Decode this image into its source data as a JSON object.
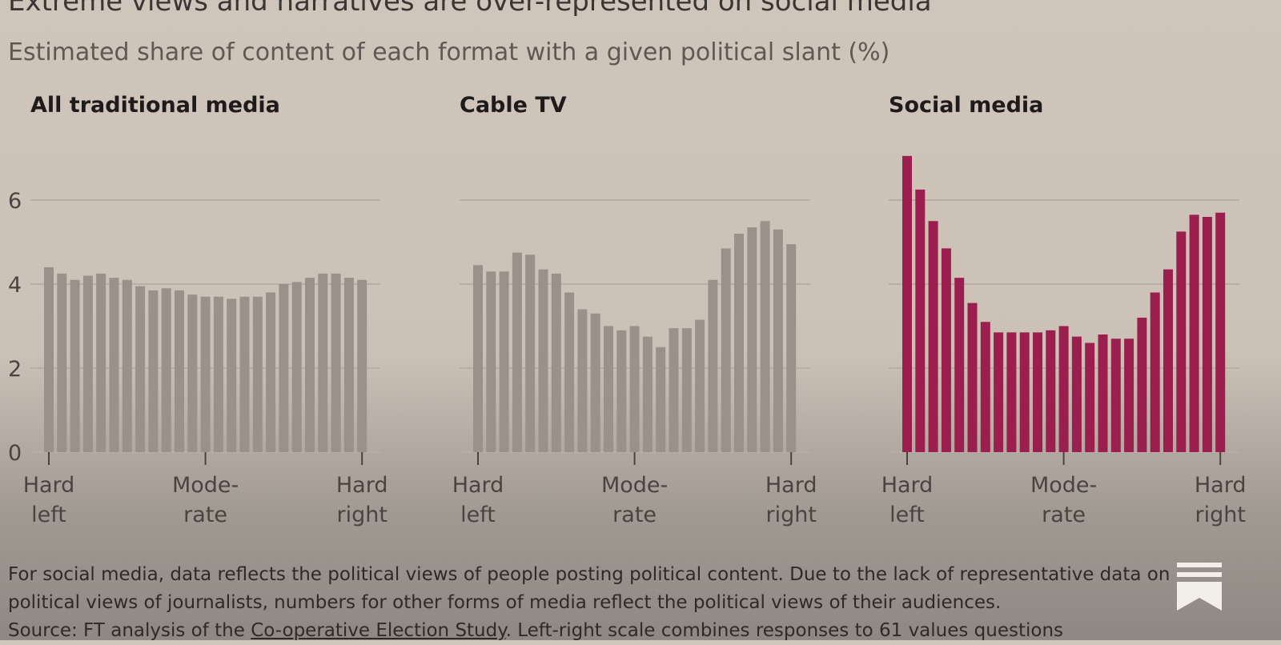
{
  "header": {
    "title": "Extreme views and narratives are over-represented on social media",
    "subtitle": "Estimated share of content of each format with a given political slant (%)"
  },
  "colors": {
    "grey_bar": "#9b918a",
    "social_bar": "#9b1f4c",
    "grid": "#b8aea5"
  },
  "chart_data": [
    {
      "type": "bar",
      "title": "All traditional media",
      "xticks": [
        {
          "line1": "Hard",
          "line2": "left"
        },
        {
          "line1": "Mode-",
          "line2": "rate"
        },
        {
          "line1": "Hard",
          "line2": "right"
        }
      ],
      "yticks": [
        "0",
        "2",
        "4",
        "6"
      ],
      "ylim": [
        0,
        7
      ],
      "values": [
        4.4,
        4.25,
        4.1,
        4.2,
        4.25,
        4.15,
        4.1,
        3.95,
        3.85,
        3.9,
        3.85,
        3.75,
        3.7,
        3.7,
        3.65,
        3.7,
        3.7,
        3.8,
        4.0,
        4.05,
        4.15,
        4.25,
        4.25,
        4.15,
        4.1
      ],
      "color": "#9b918a"
    },
    {
      "type": "bar",
      "title": "Cable TV",
      "xticks": [
        {
          "line1": "Hard",
          "line2": "left"
        },
        {
          "line1": "Mode-",
          "line2": "rate"
        },
        {
          "line1": "Hard",
          "line2": "right"
        }
      ],
      "yticks": [
        "0",
        "2",
        "4",
        "6"
      ],
      "ylim": [
        0,
        7
      ],
      "values": [
        4.45,
        4.3,
        4.3,
        4.75,
        4.7,
        4.35,
        4.25,
        3.8,
        3.4,
        3.3,
        3.0,
        2.9,
        3.0,
        2.75,
        2.5,
        2.95,
        2.95,
        3.15,
        4.1,
        4.85,
        5.2,
        5.35,
        5.5,
        5.3,
        4.95
      ],
      "color": "#9b918a"
    },
    {
      "type": "bar",
      "title": "Social media",
      "xticks": [
        {
          "line1": "Hard",
          "line2": "left"
        },
        {
          "line1": "Mode-",
          "line2": "rate"
        },
        {
          "line1": "Hard",
          "line2": "right"
        }
      ],
      "yticks": [
        "0",
        "2",
        "4",
        "6"
      ],
      "ylim": [
        0,
        7
      ],
      "values": [
        7.05,
        6.25,
        5.5,
        4.85,
        4.15,
        3.55,
        3.1,
        2.85,
        2.85,
        2.85,
        2.85,
        2.9,
        3.0,
        2.75,
        2.6,
        2.8,
        2.7,
        2.7,
        3.2,
        3.8,
        4.35,
        5.25,
        5.65,
        5.6,
        5.7
      ],
      "color": "#9b1f4c"
    }
  ],
  "footnote": {
    "line1": "For social media, data reflects the political views of people posting political content. Due to the lack of representative data on",
    "line2": "political views of journalists, numbers for other forms of media reflect the political views of their audiences.",
    "line3_prefix": "Source: FT analysis of the ",
    "line3_link": "Co-operative Election Study",
    "line3_suffix": ". Left-right scale combines responses to 61 values questions"
  },
  "icons": {
    "bookmark": "bookmark-icon"
  }
}
